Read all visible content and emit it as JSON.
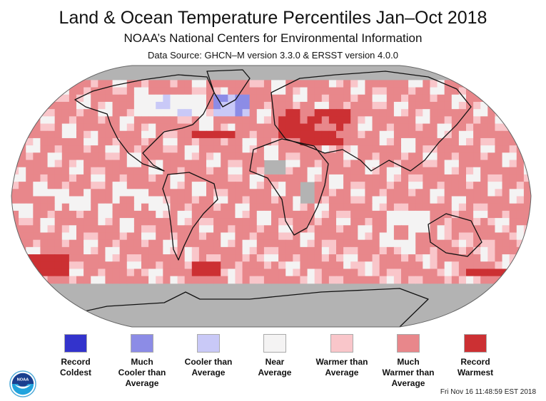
{
  "header": {
    "title": "Land & Ocean Temperature Percentiles Jan–Oct 2018",
    "subtitle": "NOAA’s National Centers for Environmental Information",
    "source": "Data Source: GHCN–M version 3.3.0 & ERSST version 4.0.0"
  },
  "map": {
    "projection": "Robinson",
    "no_data_color": "#b3b3b3",
    "coastline_color": "#111111"
  },
  "legend": {
    "items": [
      {
        "key": "record-coldest",
        "label": "Record Coldest",
        "lines": [
          "Record",
          "Coldest"
        ],
        "color": "#3333cc"
      },
      {
        "key": "much-cooler",
        "label": "Much Cooler than Average",
        "lines": [
          "Much",
          "Cooler than",
          "Average"
        ],
        "color": "#8c8ce6"
      },
      {
        "key": "cooler",
        "label": "Cooler than Average",
        "lines": [
          "Cooler than",
          "Average"
        ],
        "color": "#c9c9f7"
      },
      {
        "key": "near-average",
        "label": "Near Average",
        "lines": [
          "Near",
          "Average"
        ],
        "color": "#f4f3f3"
      },
      {
        "key": "warmer",
        "label": "Warmer than Average",
        "lines": [
          "Warmer than",
          "Average"
        ],
        "color": "#f9c6ca"
      },
      {
        "key": "much-warmer",
        "label": "Much Warmer than Average",
        "lines": [
          "Much",
          "Warmer than",
          "Average"
        ],
        "color": "#e8878b"
      },
      {
        "key": "record-warmest",
        "label": "Record Warmest",
        "lines": [
          "Record",
          "Warmest"
        ],
        "color": "#cc3033"
      }
    ]
  },
  "logo": {
    "text": "NOAA"
  },
  "timestamp": "Fri Nov 16 11:48:59 EST 2018"
}
